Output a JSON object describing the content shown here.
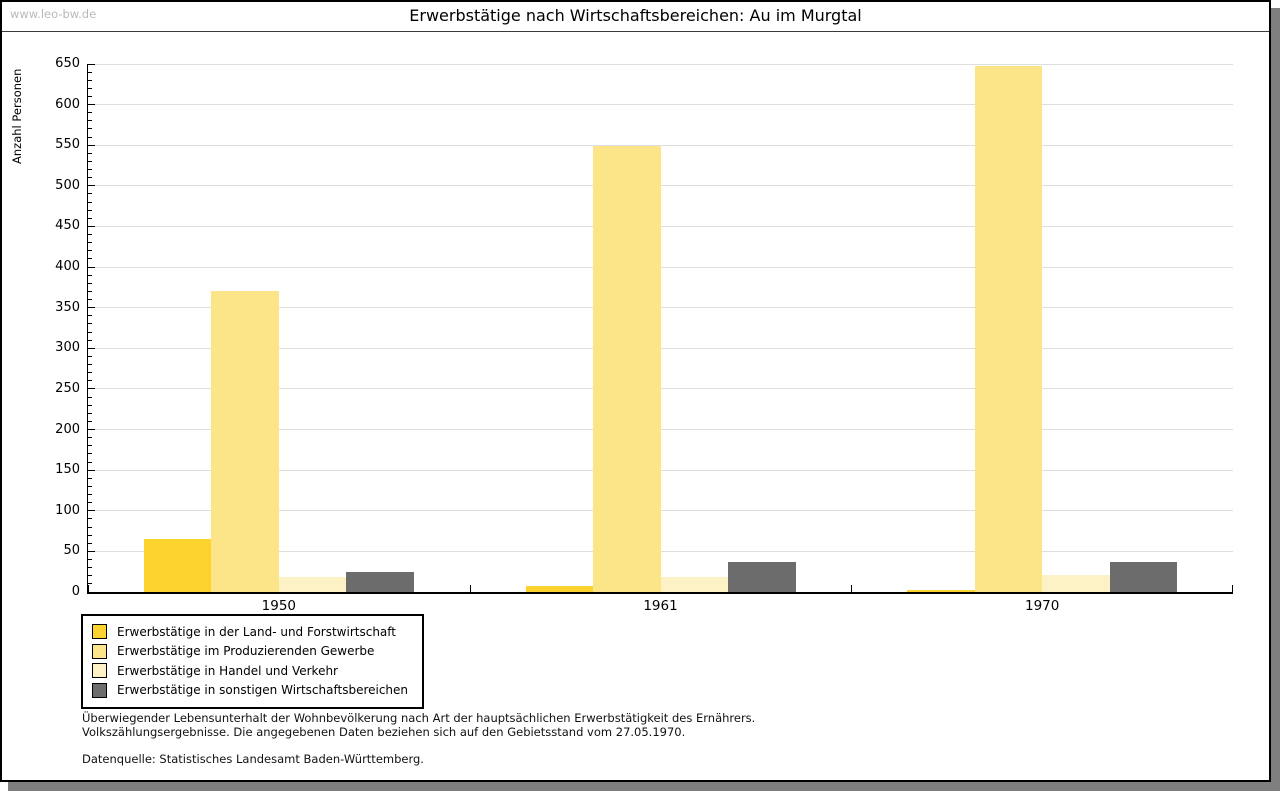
{
  "page": {
    "watermark": "www.leo-bw.de",
    "title": "Erwerbstätige nach Wirtschaftsbereichen: Au im Murgtal"
  },
  "chart_data": {
    "type": "bar",
    "title": "Erwerbstätige nach Wirtschaftsbereichen: Au im Murgtal",
    "xlabel": "",
    "ylabel": "Anzahl Personen",
    "ylim": [
      0,
      650
    ],
    "ytick_major": 50,
    "ytick_minor": 10,
    "grid": "horizontal-major",
    "legend_position": "bottom-left",
    "categories": [
      "1950",
      "1961",
      "1970"
    ],
    "series": [
      {
        "name": "Erwerbstätige in der Land- und Forstwirtschaft",
        "color": "#fcd22f",
        "values": [
          65,
          8,
          2
        ]
      },
      {
        "name": "Erwerbstätige im Produzierenden Gewerbe",
        "color": "#fbe588",
        "values": [
          370,
          549,
          648
        ]
      },
      {
        "name": "Erwerbstätige in Handel und Verkehr",
        "color": "#fcf2c6",
        "values": [
          18,
          18,
          21
        ]
      },
      {
        "name": "Erwerbstätige in sonstigen Wirtschaftsbereichen",
        "color": "#6c6c6c",
        "values": [
          25,
          37,
          37
        ]
      }
    ]
  },
  "footer": {
    "note_line1": "Überwiegender Lebensunterhalt der Wohnbevölkerung nach Art der hauptsächlichen Erwerbstätigkeit des Ernährers.",
    "note_line2": "Volkszählungsergebnisse. Die angegebenen Daten beziehen sich auf den Gebietsstand vom 27.05.1970.",
    "source": "Datenquelle: Statistisches Landesamt Baden-Württemberg."
  },
  "colors": {
    "axis": "#000000",
    "gridline": "#dedede",
    "watermark": "#b9b9b9",
    "shadow": "#7f7f7f",
    "background": "#ffffff"
  }
}
